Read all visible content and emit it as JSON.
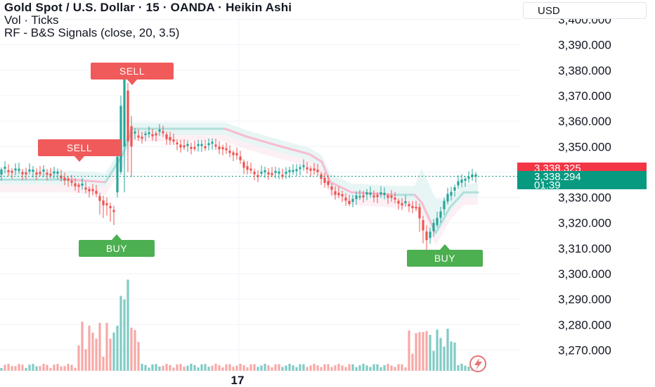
{
  "legend": {
    "title": "Gold Spot / U.S. Dollar · 15 · OANDA · Heikin Ashi",
    "volume": "Vol · Ticks",
    "indicator": "RF - B&S Signals (close, 20, 3.5)"
  },
  "currency": "USD",
  "colors": {
    "up": "#26a69a",
    "down": "#ef5350",
    "sell_label": "#f05a5a",
    "buy_label": "#4caf50",
    "band_up": "#b2dfdb",
    "band_down": "#f8bbd0",
    "cloud": "#e0f2f1",
    "current_up": "#089981",
    "current_red": "#f23645"
  },
  "chart_data": {
    "type": "candlestick",
    "style": "Heikin Ashi",
    "symbol": "Gold Spot / U.S. Dollar",
    "interval": "15",
    "source": "OANDA",
    "y_axis": {
      "ticks": [
        "3,400.000",
        "3,390.000",
        "3,380.000",
        "3,370.000",
        "3,360.000",
        "3,350.000",
        "3,330.000",
        "3,320.000",
        "3,310.000",
        "3,300.000",
        "3,290.000",
        "3,280.000",
        "3,270.000"
      ],
      "range": [
        3266,
        3401
      ]
    },
    "x_axis": {
      "ticks": [
        "17"
      ]
    },
    "current_price": {
      "red_tag": "3,338.325",
      "green_tag": "3,338.294",
      "countdown": "01:39"
    },
    "signals": [
      {
        "label": "SELL",
        "type": "sell",
        "price": 3383
      },
      {
        "label": "SELL",
        "type": "sell",
        "price": 3350
      },
      {
        "label": "BUY",
        "type": "buy",
        "price": 3320
      },
      {
        "label": "BUY",
        "type": "buy",
        "price": 3311
      }
    ],
    "series": [
      {
        "name": "Vol · Ticks"
      },
      {
        "name": "RF - B&S Signals (close, 20, 3.5)"
      }
    ]
  }
}
